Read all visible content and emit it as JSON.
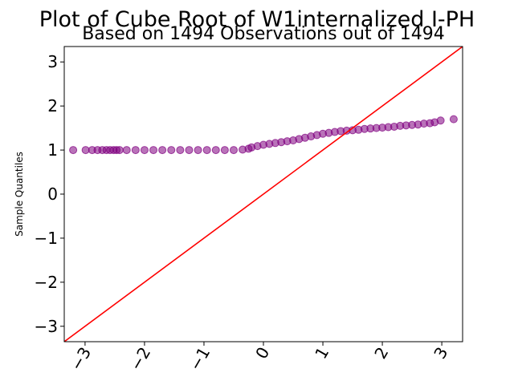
{
  "chart_data": {
    "type": "scatter",
    "title": "Plot of Cube Root of W1internalized I-PH",
    "subtitle": "Based on 1494 Observations out of 1494",
    "xlabel": "",
    "ylabel": "Sample Quantiles",
    "xlim": [
      -3.35,
      3.35
    ],
    "ylim": [
      -3.35,
      3.35
    ],
    "x_ticks": [
      -3,
      -2,
      -1,
      0,
      1,
      2,
      3
    ],
    "x_tick_labels": [
      "−3",
      "−2",
      "−1",
      "0",
      "1",
      "2",
      "3"
    ],
    "y_ticks": [
      -3,
      -2,
      -1,
      0,
      1,
      2,
      3
    ],
    "y_tick_labels": [
      "−3",
      "−2",
      "−1",
      "0",
      "1",
      "2",
      "3"
    ],
    "grid": false,
    "colors": {
      "points": "#800080",
      "reference_line": "#ff0000"
    },
    "reference_line": {
      "x": [
        -3.35,
        3.35
      ],
      "y": [
        -3.35,
        3.35
      ]
    },
    "series": [
      {
        "values": [
          {
            "x": -3.2,
            "y": 1.0
          },
          {
            "x": -2.99,
            "y": 1.0
          },
          {
            "x": -2.88,
            "y": 1.0
          },
          {
            "x": -2.79,
            "y": 1.0
          },
          {
            "x": -2.71,
            "y": 1.0
          },
          {
            "x": -2.64,
            "y": 1.0
          },
          {
            "x": -2.58,
            "y": 1.0
          },
          {
            "x": -2.52,
            "y": 1.0
          },
          {
            "x": -2.47,
            "y": 1.0
          },
          {
            "x": -2.42,
            "y": 1.0
          },
          {
            "x": -2.3,
            "y": 1.0
          },
          {
            "x": -2.15,
            "y": 1.0
          },
          {
            "x": -2.0,
            "y": 1.0
          },
          {
            "x": -1.85,
            "y": 1.0
          },
          {
            "x": -1.7,
            "y": 1.0
          },
          {
            "x": -1.55,
            "y": 1.0
          },
          {
            "x": -1.4,
            "y": 1.0
          },
          {
            "x": -1.25,
            "y": 1.0
          },
          {
            "x": -1.1,
            "y": 1.0
          },
          {
            "x": -0.95,
            "y": 1.0
          },
          {
            "x": -0.8,
            "y": 1.0
          },
          {
            "x": -0.65,
            "y": 1.0
          },
          {
            "x": -0.5,
            "y": 1.0
          },
          {
            "x": -0.35,
            "y": 1.01
          },
          {
            "x": -0.25,
            "y": 1.03
          },
          {
            "x": -0.2,
            "y": 1.06
          },
          {
            "x": -0.1,
            "y": 1.09
          },
          {
            "x": 0.0,
            "y": 1.12
          },
          {
            "x": 0.1,
            "y": 1.14
          },
          {
            "x": 0.2,
            "y": 1.16
          },
          {
            "x": 0.3,
            "y": 1.18
          },
          {
            "x": 0.4,
            "y": 1.2
          },
          {
            "x": 0.5,
            "y": 1.22
          },
          {
            "x": 0.6,
            "y": 1.25
          },
          {
            "x": 0.7,
            "y": 1.28
          },
          {
            "x": 0.8,
            "y": 1.31
          },
          {
            "x": 0.9,
            "y": 1.34
          },
          {
            "x": 1.0,
            "y": 1.37
          },
          {
            "x": 1.1,
            "y": 1.39
          },
          {
            "x": 1.2,
            "y": 1.41
          },
          {
            "x": 1.3,
            "y": 1.43
          },
          {
            "x": 1.4,
            "y": 1.44
          },
          {
            "x": 1.5,
            "y": 1.45
          },
          {
            "x": 1.6,
            "y": 1.46
          },
          {
            "x": 1.7,
            "y": 1.48
          },
          {
            "x": 1.8,
            "y": 1.49
          },
          {
            "x": 1.9,
            "y": 1.5
          },
          {
            "x": 2.0,
            "y": 1.51
          },
          {
            "x": 2.1,
            "y": 1.52
          },
          {
            "x": 2.2,
            "y": 1.53
          },
          {
            "x": 2.3,
            "y": 1.55
          },
          {
            "x": 2.4,
            "y": 1.56
          },
          {
            "x": 2.5,
            "y": 1.57
          },
          {
            "x": 2.6,
            "y": 1.58
          },
          {
            "x": 2.7,
            "y": 1.6
          },
          {
            "x": 2.8,
            "y": 1.61
          },
          {
            "x": 2.88,
            "y": 1.63
          },
          {
            "x": 2.98,
            "y": 1.67
          },
          {
            "x": 3.2,
            "y": 1.7
          }
        ]
      }
    ]
  }
}
